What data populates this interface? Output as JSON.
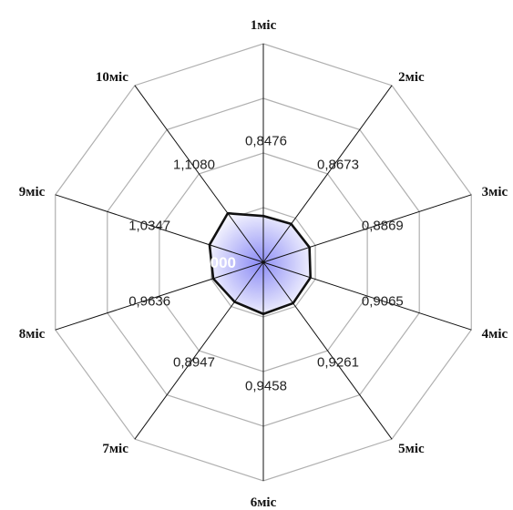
{
  "chart_data": {
    "type": "radar",
    "categories": [
      "1міс",
      "2міс",
      "3міс",
      "4міс",
      "5міс",
      "6міс",
      "7міс",
      "8міс",
      "9міс",
      "10міс"
    ],
    "values": [
      0.8476,
      0.8673,
      0.8869,
      0.9065,
      0.9261,
      0.9458,
      0.8947,
      0.9636,
      1.0347,
      1.108
    ],
    "value_labels": [
      "0,8476",
      "0,8673",
      "0,8869",
      "0,9065",
      "0,9261",
      "0,9458",
      "0,8947",
      "0,9636",
      "1,0347",
      "1,1080"
    ],
    "center_label": "0,0000",
    "rlim": [
      0,
      4
    ],
    "ring_count": 4,
    "grid": true,
    "colors": {
      "fill_outer": "#8c8cf5",
      "fill_inner": "#ffffff",
      "series_line": "#111111",
      "grid": "#b0b0b0",
      "axis": "#111111"
    }
  }
}
